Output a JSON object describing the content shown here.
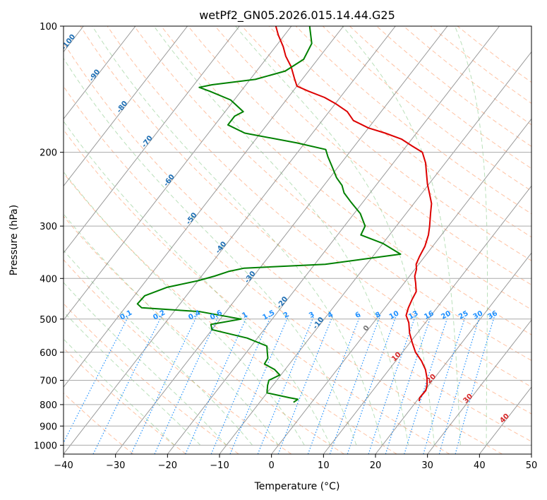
{
  "chart_data": {
    "type": "line",
    "diagram": "skew-T log-P",
    "title": "wetPf2_GN05.2026.015.14.44.G25",
    "xlabel": "Temperature (°C)",
    "ylabel": "Pressure (hPa)",
    "xlim": [
      -40,
      50
    ],
    "ylim": [
      1050,
      100
    ],
    "y_scale": "log",
    "grid": true,
    "x_ticks": [
      -40,
      -30,
      -20,
      -10,
      0,
      10,
      20,
      30,
      40,
      50
    ],
    "x_tick_labels": [
      "−40",
      "−30",
      "−20",
      "−10",
      "0",
      "10",
      "20",
      "30",
      "40",
      "50"
    ],
    "y_ticks": [
      1000,
      900,
      800,
      700,
      600,
      500,
      400,
      300,
      200,
      100
    ],
    "y_tick_labels": [
      "1000",
      "900",
      "800",
      "700",
      "600",
      "500",
      "400",
      "300",
      "200",
      "100"
    ],
    "series": [
      {
        "color": "#dd0000",
        "points": [
          [
            20.5,
            785
          ],
          [
            20.1,
            770
          ],
          [
            20.2,
            740
          ],
          [
            19.5,
            715
          ],
          [
            18.5,
            690
          ],
          [
            17,
            660
          ],
          [
            15,
            630
          ],
          [
            12.5,
            600
          ],
          [
            10.5,
            570
          ],
          [
            8.5,
            540
          ],
          [
            6.8,
            510
          ],
          [
            5.2,
            490
          ],
          [
            4.5,
            470
          ],
          [
            4,
            450
          ],
          [
            3.6,
            430
          ],
          [
            2.2,
            410
          ],
          [
            1,
            395
          ],
          [
            0.3,
            380
          ],
          [
            -0.5,
            370
          ],
          [
            -1,
            355
          ],
          [
            -1.5,
            335
          ],
          [
            -2.5,
            315
          ],
          [
            -3.6,
            300
          ],
          [
            -5.3,
            280
          ],
          [
            -6.6,
            265
          ],
          [
            -8.6,
            250
          ],
          [
            -10.3,
            238
          ],
          [
            -12,
            225
          ],
          [
            -13.8,
            212
          ],
          [
            -16,
            200
          ],
          [
            -19,
            193
          ],
          [
            -22,
            186
          ],
          [
            -26,
            180
          ],
          [
            -30,
            175
          ],
          [
            -34,
            168
          ],
          [
            -36.5,
            160
          ],
          [
            -40,
            153
          ],
          [
            -43,
            148
          ],
          [
            -47,
            143
          ],
          [
            -50,
            139
          ],
          [
            -51.7,
            133
          ],
          [
            -54,
            125
          ],
          [
            -56.6,
            118
          ],
          [
            -58.5,
            112
          ],
          [
            -61.2,
            105
          ],
          [
            -63,
            100
          ]
        ]
      },
      {
        "color": "#008000",
        "points": [
          [
            -3.5,
            790
          ],
          [
            -3.1,
            777
          ],
          [
            -5,
            770
          ],
          [
            -10,
            750
          ],
          [
            -11,
            720
          ],
          [
            -11.5,
            700
          ],
          [
            -10.2,
            680
          ],
          [
            -12,
            660
          ],
          [
            -14.8,
            640
          ],
          [
            -15,
            620
          ],
          [
            -16,
            600
          ],
          [
            -17,
            580
          ],
          [
            -22,
            555
          ],
          [
            -30,
            530
          ],
          [
            -31,
            515
          ],
          [
            -26,
            500
          ],
          [
            -35,
            480
          ],
          [
            -46.8,
            470
          ],
          [
            -48.2,
            460
          ],
          [
            -48,
            440
          ],
          [
            -45,
            420
          ],
          [
            -40,
            405
          ],
          [
            -37.5,
            395
          ],
          [
            -35.5,
            385
          ],
          [
            -33,
            378
          ],
          [
            -18,
            370
          ],
          [
            -5,
            350
          ],
          [
            -10,
            330
          ],
          [
            -15.5,
            315
          ],
          [
            -16,
            300
          ],
          [
            -18.8,
            280
          ],
          [
            -22.5,
            262
          ],
          [
            -25,
            250
          ],
          [
            -26.5,
            240
          ],
          [
            -28.7,
            230
          ],
          [
            -31.5,
            215
          ],
          [
            -33.5,
            205
          ],
          [
            -35,
            197
          ],
          [
            -41.5,
            190
          ],
          [
            -53,
            180
          ],
          [
            -57.5,
            172
          ],
          [
            -57.5,
            164
          ],
          [
            -56.5,
            160
          ],
          [
            -60.7,
            150
          ],
          [
            -66,
            143
          ],
          [
            -68.6,
            140
          ],
          [
            -66.5,
            138
          ],
          [
            -59,
            134
          ],
          [
            -54.5,
            128
          ],
          [
            -52.7,
            120
          ],
          [
            -53.5,
            110
          ],
          [
            -56.5,
            100
          ]
        ]
      }
    ],
    "isotherm_labels": [
      "-100",
      "-90",
      "-80",
      "-70",
      "-60",
      "-50",
      "-40",
      "-30",
      "-20",
      "-10",
      "0"
    ],
    "mixing_ratio_labels": [
      "0.1",
      "0.2",
      "0.4",
      "0.6",
      "1",
      "1.5",
      "2",
      "3",
      "4",
      "6",
      "8",
      "10",
      "13",
      "16",
      "20",
      "25",
      "30",
      "36"
    ],
    "moist_adiabat_labels": [
      "10",
      "20",
      "30",
      "40"
    ],
    "colors": {
      "temperature": "#dd0000",
      "dewpoint": "#008000",
      "isotherm_label": "#1f6fb4",
      "mixing_ratio": "#1e90ff",
      "moist_adiabat_label": "#d62728",
      "dry_adiabat": "#ff9966",
      "moist_adiabat": "#66bb66",
      "grid": "#aaaaaa"
    }
  }
}
